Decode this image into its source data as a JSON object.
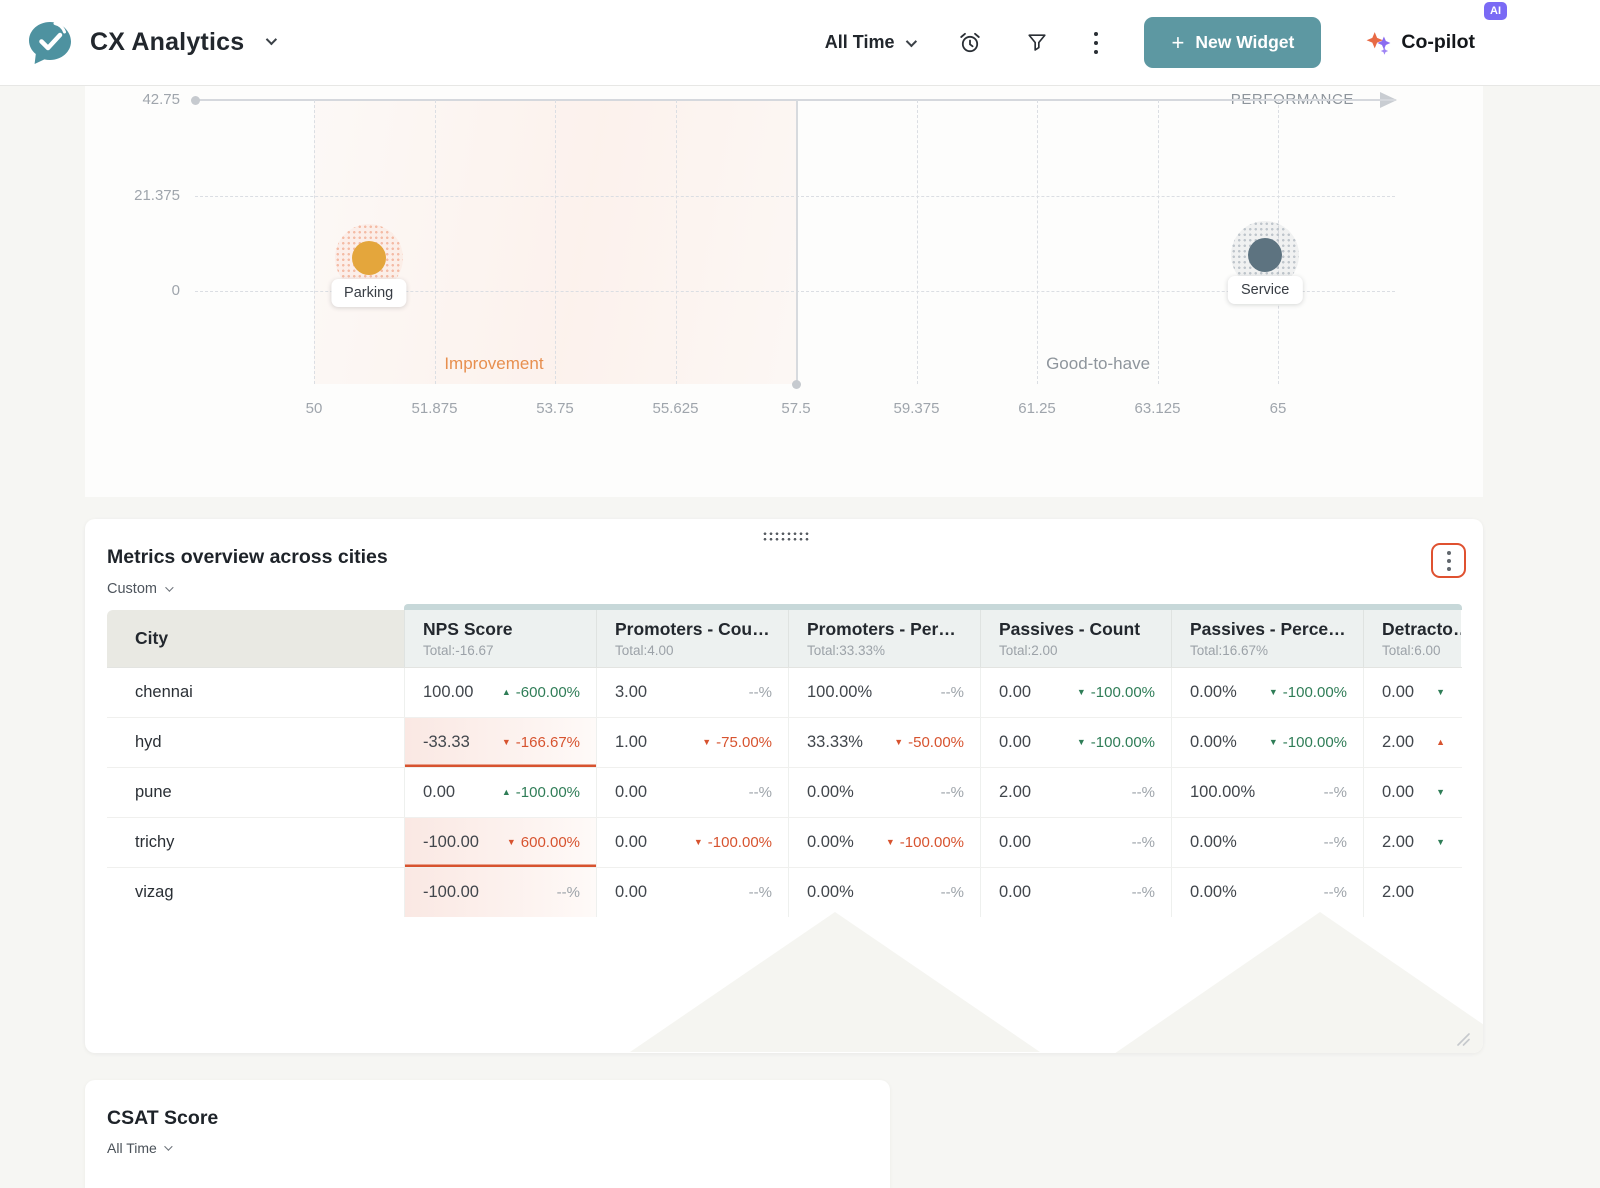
{
  "header": {
    "app_title": "CX Analytics",
    "time_filter": "All Time",
    "new_widget_label": "New Widget",
    "copilot_label": "Co-pilot",
    "ai_badge": "AI",
    "accent_teal": "#5D98A2",
    "accent_purple": "#7A6AF5"
  },
  "chart_data": {
    "type": "scatter",
    "x_axis_label": "PERFORMANCE",
    "xlim": [
      50,
      65
    ],
    "ylim": [
      0,
      42.75
    ],
    "x_ticks": [
      "50",
      "51.875",
      "53.75",
      "55.625",
      "57.5",
      "59.375",
      "61.25",
      "63.125",
      "65"
    ],
    "y_ticks": [
      "42.75",
      "21.375",
      "0"
    ],
    "divider_x": "57.5",
    "grid": "dashed",
    "zones": [
      {
        "label": "Improvement",
        "x": 52.8,
        "color": "#E78F4F"
      },
      {
        "label": "Good-to-have",
        "x": 62.2,
        "color": "#8E959C"
      }
    ],
    "points": [
      {
        "label": "Parking",
        "x": 50.85,
        "y": 7.3,
        "color": "#E4A63C",
        "halo": "rgba(238,146,112,0.55)",
        "halo_bg": "rgba(244,170,140,0.10)"
      },
      {
        "label": "Service",
        "x": 64.8,
        "y": 8.0,
        "color": "#5D7380",
        "halo": "rgba(130,145,156,0.45)",
        "halo_bg": "rgba(160,170,178,0.14)"
      }
    ]
  },
  "table_widget": {
    "title": "Metrics overview across cities",
    "filter_label": "Custom",
    "columns": [
      {
        "label": "City"
      },
      {
        "label": "NPS Score",
        "total": "-16.67"
      },
      {
        "label": "Promoters - Cou…",
        "total": "4.00"
      },
      {
        "label": "Promoters - Per…",
        "total": "33.33%"
      },
      {
        "label": "Passives - Count",
        "total": "2.00"
      },
      {
        "label": "Passives - Perce…",
        "total": "16.67%"
      },
      {
        "label": "Detracto…",
        "total": "6.00"
      }
    ],
    "rows": [
      {
        "city": "chennai",
        "cells": [
          {
            "v": "100.00",
            "d": "-600.00%",
            "dir": "up",
            "tone": "green"
          },
          {
            "v": "3.00",
            "d": "--%",
            "tone": "muted"
          },
          {
            "v": "100.00%",
            "d": "--%",
            "tone": "muted"
          },
          {
            "v": "0.00",
            "d": "-100.00%",
            "dir": "down",
            "tone": "green"
          },
          {
            "v": "0.00%",
            "d": "-100.00%",
            "dir": "down",
            "tone": "green"
          },
          {
            "v": "0.00",
            "d": "",
            "dir": "down",
            "tone": "green"
          }
        ]
      },
      {
        "city": "hyd",
        "cells": [
          {
            "v": "-33.33",
            "d": "-166.67%",
            "dir": "down",
            "tone": "red",
            "hl": true,
            "ul": true
          },
          {
            "v": "1.00",
            "d": "-75.00%",
            "dir": "down",
            "tone": "red"
          },
          {
            "v": "33.33%",
            "d": "-50.00%",
            "dir": "down",
            "tone": "red"
          },
          {
            "v": "0.00",
            "d": "-100.00%",
            "dir": "down",
            "tone": "green"
          },
          {
            "v": "0.00%",
            "d": "-100.00%",
            "dir": "down",
            "tone": "green"
          },
          {
            "v": "2.00",
            "d": "",
            "dir": "up",
            "tone": "red"
          }
        ]
      },
      {
        "city": "pune",
        "cells": [
          {
            "v": "0.00",
            "d": "-100.00%",
            "dir": "up",
            "tone": "green"
          },
          {
            "v": "0.00",
            "d": "--%",
            "tone": "muted"
          },
          {
            "v": "0.00%",
            "d": "--%",
            "tone": "muted"
          },
          {
            "v": "2.00",
            "d": "--%",
            "tone": "muted"
          },
          {
            "v": "100.00%",
            "d": "--%",
            "tone": "muted"
          },
          {
            "v": "0.00",
            "d": "",
            "dir": "down",
            "tone": "green"
          }
        ]
      },
      {
        "city": "trichy",
        "cells": [
          {
            "v": "-100.00",
            "d": "600.00%",
            "dir": "down",
            "tone": "red",
            "hl": true,
            "ul": true
          },
          {
            "v": "0.00",
            "d": "-100.00%",
            "dir": "down",
            "tone": "red"
          },
          {
            "v": "0.00%",
            "d": "-100.00%",
            "dir": "down",
            "tone": "red"
          },
          {
            "v": "0.00",
            "d": "--%",
            "tone": "muted"
          },
          {
            "v": "0.00%",
            "d": "--%",
            "tone": "muted"
          },
          {
            "v": "2.00",
            "d": "",
            "dir": "down",
            "tone": "green"
          }
        ]
      },
      {
        "city": "vizag",
        "cells": [
          {
            "v": "-100.00",
            "d": "--%",
            "tone": "muted",
            "hl": true
          },
          {
            "v": "0.00",
            "d": "--%",
            "tone": "muted"
          },
          {
            "v": "0.00%",
            "d": "--%",
            "tone": "muted"
          },
          {
            "v": "0.00",
            "d": "--%",
            "tone": "muted"
          },
          {
            "v": "0.00%",
            "d": "--%",
            "tone": "muted"
          },
          {
            "v": "2.00",
            "d": "",
            "tone": "muted"
          }
        ]
      }
    ]
  },
  "csat_widget": {
    "title": "CSAT Score",
    "filter_label": "All Time"
  }
}
